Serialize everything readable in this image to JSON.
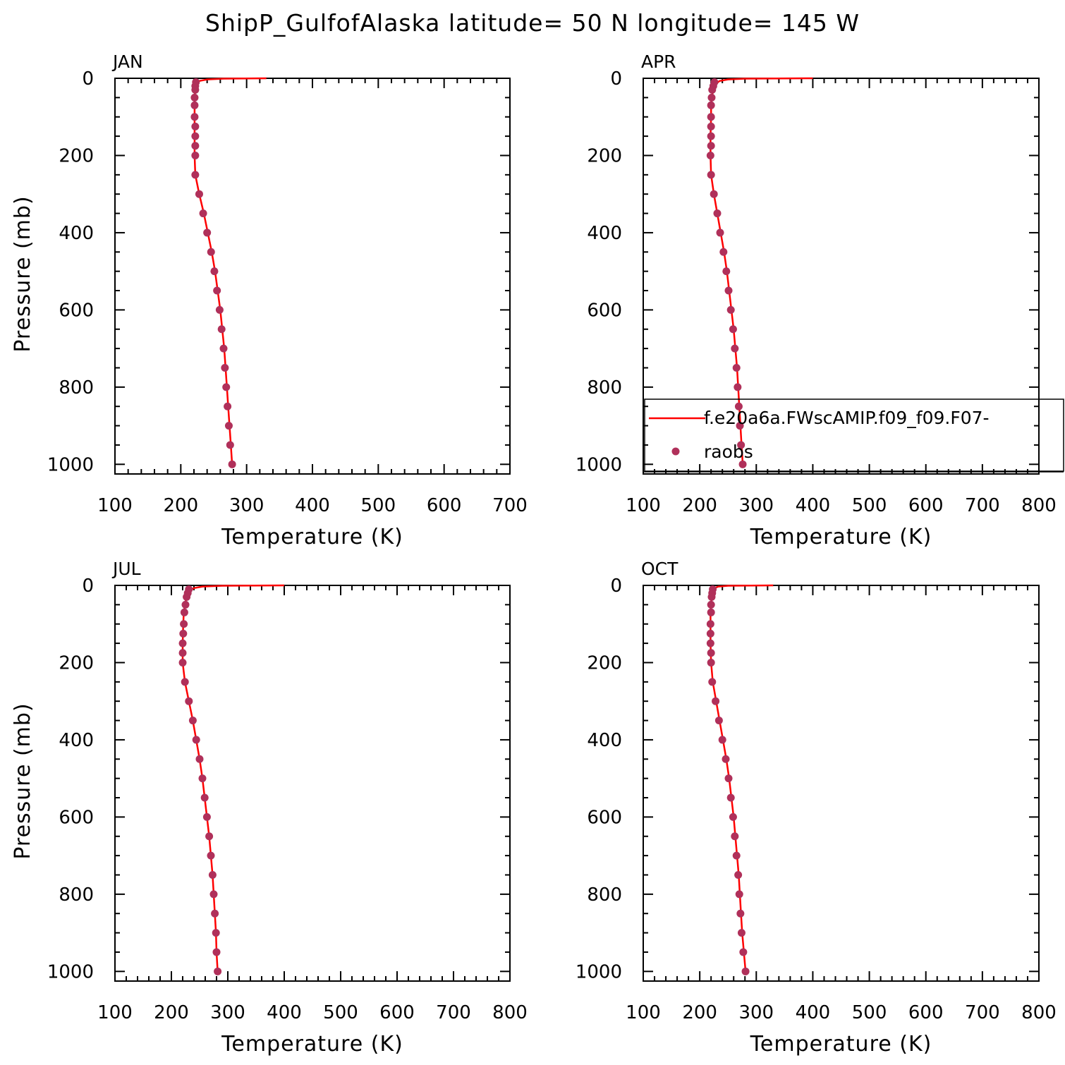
{
  "figure": {
    "title": "ShipP_GulfofAlaska  latitude= 50 N longitude= 145 W"
  },
  "colors": {
    "model_line": "#ff0000",
    "obs_marker": "#b0305a",
    "axis": "#000000"
  },
  "legend": {
    "entries": [
      {
        "label": "f.e20a6a.FWscAMIP.f09_f09.F07-",
        "style": "line"
      },
      {
        "label": "raobs",
        "style": "marker"
      }
    ]
  },
  "chart_data": [
    {
      "type": "line",
      "panel_label": "JAN",
      "xlabel": "Temperature (K)",
      "ylabel": "Pressure (mb)",
      "xlim": [
        100,
        700
      ],
      "ylim": [
        1025,
        0
      ],
      "xticks": [
        100,
        200,
        300,
        400,
        500,
        600,
        700
      ],
      "yticks": [
        0,
        200,
        400,
        600,
        800,
        1000
      ],
      "show_legend": false,
      "series": [
        {
          "name": "f.e20a6a.FWscAMIP.f09_f09.F07-",
          "kind": "line",
          "pressure": [
            0,
            1,
            3,
            7,
            15,
            30,
            50,
            70,
            100,
            150,
            200,
            250,
            300,
            350,
            400,
            450,
            500,
            550,
            600,
            650,
            700,
            750,
            800,
            850,
            900,
            950,
            1000
          ],
          "temperature": [
            330,
            265,
            240,
            228,
            224,
            222,
            221,
            221,
            221,
            221,
            221,
            222,
            228,
            235,
            241,
            247,
            252,
            256,
            260,
            263,
            266,
            268,
            270,
            272,
            274,
            276,
            278
          ]
        },
        {
          "name": "raobs",
          "kind": "scatter",
          "pressure": [
            10,
            20,
            30,
            50,
            70,
            100,
            125,
            150,
            175,
            200,
            250,
            300,
            350,
            400,
            450,
            500,
            550,
            600,
            650,
            700,
            750,
            800,
            850,
            900,
            950,
            1000
          ],
          "temperature": [
            223,
            222,
            222,
            221,
            221,
            221,
            222,
            222,
            222,
            222,
            222,
            228,
            234,
            240,
            246,
            251,
            255,
            259,
            262,
            265,
            267,
            269,
            271,
            273,
            275,
            278
          ]
        }
      ]
    },
    {
      "type": "line",
      "panel_label": "APR",
      "xlabel": "Temperature (K)",
      "ylabel": "",
      "xlim": [
        100,
        800
      ],
      "ylim": [
        1025,
        0
      ],
      "xticks": [
        100,
        200,
        300,
        400,
        500,
        600,
        700,
        800
      ],
      "yticks": [
        0,
        200,
        400,
        600,
        800,
        1000
      ],
      "show_legend": true,
      "series": [
        {
          "name": "f.e20a6a.FWscAMIP.f09_f09.F07-",
          "kind": "line",
          "pressure": [
            0,
            1,
            3,
            7,
            15,
            30,
            50,
            70,
            100,
            150,
            200,
            250,
            300,
            350,
            400,
            450,
            500,
            550,
            600,
            650,
            700,
            750,
            800,
            850,
            900,
            950,
            1000
          ],
          "temperature": [
            400,
            280,
            250,
            235,
            228,
            224,
            221,
            220,
            220,
            219,
            219,
            220,
            225,
            231,
            237,
            243,
            248,
            252,
            256,
            260,
            263,
            266,
            268,
            270,
            272,
            274,
            276
          ]
        },
        {
          "name": "raobs",
          "kind": "scatter",
          "pressure": [
            10,
            20,
            30,
            50,
            70,
            100,
            125,
            150,
            175,
            200,
            250,
            300,
            350,
            400,
            450,
            500,
            550,
            600,
            650,
            700,
            750,
            800,
            850,
            900,
            950,
            1000
          ],
          "temperature": [
            226,
            224,
            222,
            221,
            220,
            220,
            220,
            220,
            220,
            219,
            220,
            225,
            231,
            236,
            242,
            247,
            251,
            255,
            259,
            262,
            265,
            267,
            269,
            271,
            273,
            276
          ]
        }
      ]
    },
    {
      "type": "line",
      "panel_label": "JUL",
      "xlabel": "Temperature (K)",
      "ylabel": "Pressure (mb)",
      "xlim": [
        100,
        800
      ],
      "ylim": [
        1025,
        0
      ],
      "xticks": [
        100,
        200,
        300,
        400,
        500,
        600,
        700,
        800
      ],
      "yticks": [
        0,
        200,
        400,
        600,
        800,
        1000
      ],
      "show_legend": false,
      "series": [
        {
          "name": "f.e20a6a.FWscAMIP.f09_f09.F07-",
          "kind": "line",
          "pressure": [
            0,
            1,
            3,
            7,
            15,
            30,
            50,
            70,
            100,
            150,
            200,
            250,
            300,
            350,
            400,
            450,
            500,
            550,
            600,
            650,
            700,
            750,
            800,
            850,
            900,
            950,
            1000
          ],
          "temperature": [
            400,
            290,
            255,
            240,
            232,
            227,
            224,
            222,
            221,
            220,
            220,
            224,
            231,
            238,
            244,
            250,
            255,
            259,
            263,
            267,
            270,
            273,
            275,
            277,
            279,
            280,
            282
          ]
        },
        {
          "name": "raobs",
          "kind": "scatter",
          "pressure": [
            10,
            20,
            30,
            50,
            70,
            100,
            125,
            150,
            175,
            200,
            250,
            300,
            350,
            400,
            450,
            500,
            550,
            600,
            650,
            700,
            750,
            800,
            850,
            900,
            950,
            1000
          ],
          "temperature": [
            231,
            229,
            227,
            225,
            223,
            222,
            221,
            220,
            220,
            220,
            224,
            231,
            238,
            244,
            250,
            255,
            259,
            263,
            267,
            270,
            273,
            275,
            277,
            279,
            280,
            282
          ]
        }
      ]
    },
    {
      "type": "line",
      "panel_label": "OCT",
      "xlabel": "Temperature (K)",
      "ylabel": "",
      "xlim": [
        100,
        800
      ],
      "ylim": [
        1025,
        0
      ],
      "xticks": [
        100,
        200,
        300,
        400,
        500,
        600,
        700,
        800
      ],
      "yticks": [
        0,
        200,
        400,
        600,
        800,
        1000
      ],
      "show_legend": false,
      "series": [
        {
          "name": "f.e20a6a.FWscAMIP.f09_f09.F07-",
          "kind": "line",
          "pressure": [
            0,
            1,
            3,
            7,
            15,
            30,
            50,
            70,
            100,
            150,
            200,
            250,
            300,
            350,
            400,
            450,
            500,
            550,
            600,
            650,
            700,
            750,
            800,
            850,
            900,
            950,
            1000
          ],
          "temperature": [
            330,
            250,
            233,
            226,
            223,
            221,
            220,
            219,
            219,
            219,
            220,
            223,
            229,
            235,
            241,
            247,
            252,
            256,
            260,
            263,
            266,
            269,
            271,
            273,
            275,
            278,
            281
          ]
        },
        {
          "name": "raobs",
          "kind": "scatter",
          "pressure": [
            10,
            20,
            30,
            50,
            70,
            100,
            125,
            150,
            175,
            200,
            250,
            300,
            350,
            400,
            450,
            500,
            550,
            600,
            650,
            700,
            750,
            800,
            850,
            900,
            950,
            1000
          ],
          "temperature": [
            223,
            222,
            221,
            220,
            220,
            219,
            219,
            219,
            220,
            220,
            222,
            228,
            234,
            240,
            246,
            251,
            255,
            259,
            262,
            265,
            268,
            270,
            272,
            274,
            277,
            281
          ]
        }
      ]
    }
  ]
}
